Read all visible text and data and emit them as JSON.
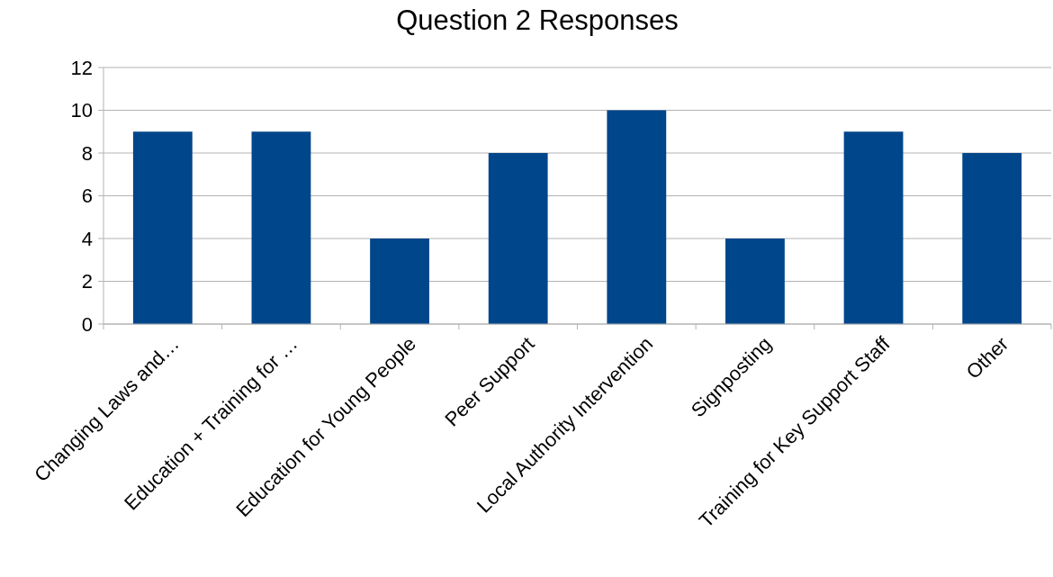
{
  "chart_data": {
    "type": "bar",
    "title": "Question 2 Responses",
    "categories": [
      "Changing Laws and…",
      "Education + Training for …",
      "Education for Young People",
      "Peer Support",
      "Local Authority Intervention",
      "Signposting",
      "Training for Key Support Staff",
      "Other"
    ],
    "values": [
      9,
      9,
      4,
      8,
      10,
      4,
      9,
      8
    ],
    "color": "#00468b",
    "ylim": [
      0,
      12
    ],
    "yticks": [
      0,
      2,
      4,
      6,
      8,
      10,
      12
    ],
    "grid": "y"
  }
}
